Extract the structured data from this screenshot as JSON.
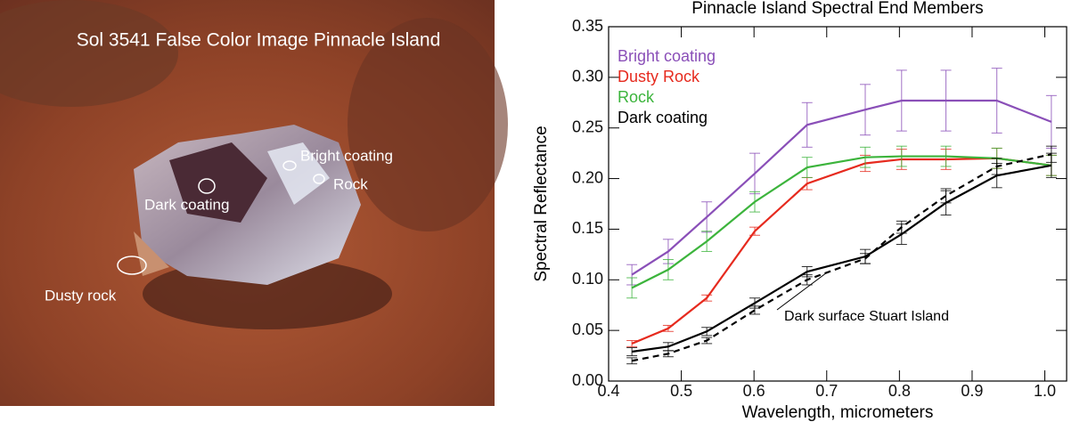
{
  "image": {
    "title": "Sol 3541 False Color Image Pinnacle Island",
    "labels": [
      "Bright coating",
      "Rock",
      "Dark coating",
      "Dusty rock"
    ]
  },
  "chart_data": {
    "type": "line",
    "title": "Pinnacle Island Spectral End Members",
    "x_label": "Wavelength, micrometers",
    "y_label": "Spectral Reflectance",
    "x": [
      0.432,
      0.482,
      0.535,
      0.601,
      0.673,
      0.753,
      0.803,
      0.864,
      0.934,
      1.009
    ],
    "series": [
      {
        "name": "Bright coating",
        "color": "#8a4fb8",
        "dash": false,
        "values": [
          0.105,
          0.128,
          0.162,
          0.205,
          0.253,
          0.268,
          0.277,
          0.277,
          0.277,
          0.256
        ],
        "errors": [
          0.01,
          0.012,
          0.015,
          0.02,
          0.022,
          0.025,
          0.03,
          0.03,
          0.032,
          0.026
        ]
      },
      {
        "name": "Dusty Rock",
        "color": "#e62a1e",
        "dash": false,
        "values": [
          0.037,
          0.052,
          0.082,
          0.148,
          0.195,
          0.215,
          0.219,
          0.219,
          0.22,
          0.213
        ],
        "errors": [
          0.003,
          0.003,
          0.003,
          0.004,
          0.006,
          0.008,
          0.01,
          0.01,
          0.01,
          0.01
        ]
      },
      {
        "name": "Rock",
        "color": "#3cb43c",
        "dash": false,
        "values": [
          0.092,
          0.11,
          0.138,
          0.177,
          0.211,
          0.221,
          0.222,
          0.222,
          0.22,
          0.213
        ],
        "errors": [
          0.01,
          0.01,
          0.01,
          0.01,
          0.01,
          0.01,
          0.01,
          0.01,
          0.01,
          0.01
        ]
      },
      {
        "name": "Dark coating",
        "color": "#000000",
        "dash": false,
        "values": [
          0.029,
          0.034,
          0.049,
          0.077,
          0.108,
          0.123,
          0.145,
          0.176,
          0.203,
          0.213
        ],
        "errors": [
          0.004,
          0.004,
          0.004,
          0.005,
          0.005,
          0.007,
          0.01,
          0.012,
          0.012,
          0.012
        ]
      },
      {
        "name": "Dark surface Stuart Island",
        "color": "#000000",
        "dash": true,
        "in_legend": false,
        "values": [
          0.02,
          0.027,
          0.04,
          0.07,
          0.1,
          0.121,
          0.152,
          0.183,
          0.212,
          0.224
        ],
        "errors": [
          0.003,
          0.003,
          0.003,
          0.004,
          0.005,
          0.005,
          0.006,
          0.007,
          0.008,
          0.008
        ]
      }
    ],
    "xlim": [
      0.4,
      1.03
    ],
    "xticks": [
      0.4,
      0.5,
      0.6,
      0.7,
      0.8,
      0.9,
      {
        "value": 1.0,
        "label": "1.0"
      }
    ],
    "ylim": [
      0,
      0.35
    ],
    "yticks": [
      {
        "value": 0,
        "label": "0.00"
      },
      0.05,
      {
        "value": 0.1,
        "label": "0.10"
      },
      0.15,
      {
        "value": 0.2,
        "label": "0.20"
      },
      0.25,
      {
        "value": 0.3,
        "label": "0.30"
      },
      0.35
    ],
    "legend": "upper left",
    "error_bars": true
  }
}
